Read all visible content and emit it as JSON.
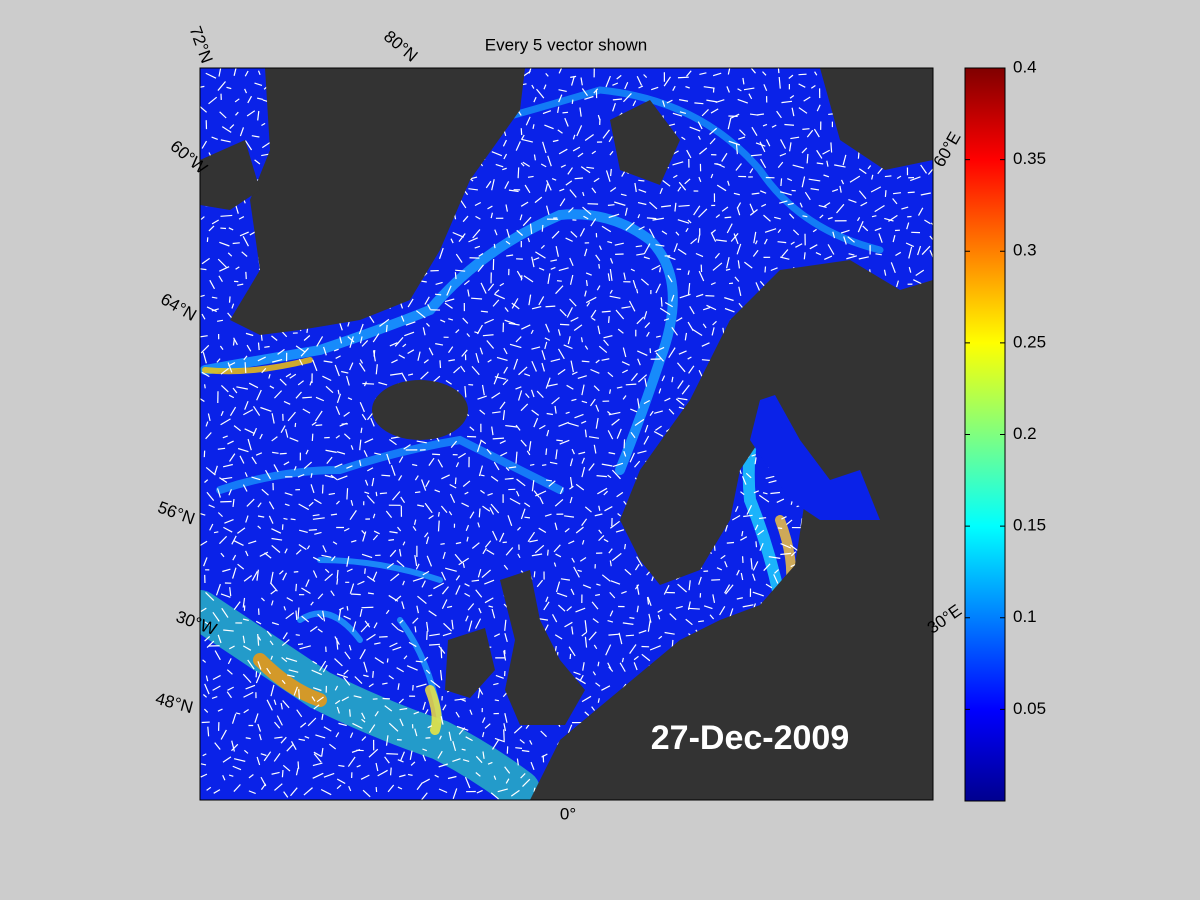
{
  "title": "Every 5 vector shown",
  "date_label": "27-Dec-2009",
  "graticule_labels": [
    "72°N",
    "80°N",
    "60°W",
    "64°N",
    "56°N",
    "30°W",
    "48°N",
    "0°",
    "30°E",
    "60°E"
  ],
  "colorbar": {
    "colormap": "jet",
    "lim": [
      0,
      0.4
    ],
    "ticks": [
      0.05,
      0.1,
      0.15,
      0.2,
      0.25,
      0.3,
      0.35,
      0.4
    ]
  }
}
